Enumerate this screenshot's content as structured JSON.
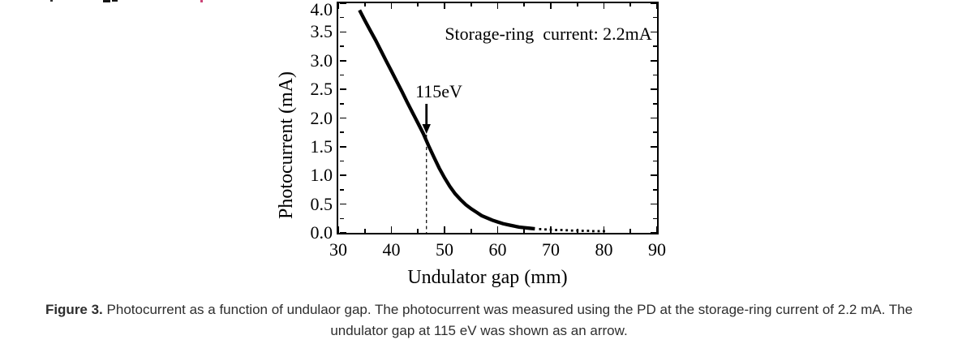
{
  "chart_data": {
    "type": "line",
    "title": "",
    "xlabel": "Undulator gap (mm)",
    "ylabel": "Photocurrent (mA)",
    "xlim": [
      30,
      90
    ],
    "ylim": [
      0.0,
      4.0
    ],
    "grid": false,
    "line_color": "#000000",
    "x_major_ticks": [
      30,
      40,
      50,
      60,
      70,
      80,
      90
    ],
    "x_tick_labels": [
      "30",
      "40",
      "50",
      "60",
      "70",
      "80",
      "90"
    ],
    "x_minor_ticks": [
      35,
      45,
      55,
      65,
      75,
      85
    ],
    "y_major_ticks": [
      0.0,
      0.5,
      1.0,
      1.5,
      2.0,
      2.5,
      3.0,
      3.5,
      4.0
    ],
    "y_tick_labels": [
      "0.0",
      "0.5",
      "1.0",
      "1.5",
      "2.0",
      "2.5",
      "3.0",
      "3.5",
      "4.0"
    ],
    "y_minor_ticks": [
      0.25,
      0.75,
      1.25,
      1.75,
      2.25,
      2.75,
      3.25,
      3.75
    ],
    "annotations": [
      {
        "text": "Storage-ring  current: 2.2mA",
        "position": "upper-right-inside"
      },
      {
        "text": "115eV",
        "type": "arrow-with-dashed-line",
        "x_mm": 46.6
      }
    ],
    "series": [
      {
        "name": "Photocurrent",
        "marker": "dense-dots",
        "points": [
          [
            34,
            3.88
          ],
          [
            35,
            3.7
          ],
          [
            36,
            3.53
          ],
          [
            37,
            3.36
          ],
          [
            38,
            3.18
          ],
          [
            39,
            3.0
          ],
          [
            40,
            2.82
          ],
          [
            41,
            2.64
          ],
          [
            42,
            2.46
          ],
          [
            43,
            2.27
          ],
          [
            44,
            2.09
          ],
          [
            45,
            1.91
          ],
          [
            46,
            1.73
          ],
          [
            47,
            1.52
          ],
          [
            48,
            1.32
          ],
          [
            49,
            1.13
          ],
          [
            50,
            0.96
          ],
          [
            51,
            0.81
          ],
          [
            52,
            0.68
          ],
          [
            53,
            0.58
          ],
          [
            54,
            0.49
          ],
          [
            55,
            0.42
          ],
          [
            56,
            0.36
          ],
          [
            57,
            0.3
          ],
          [
            58,
            0.26
          ],
          [
            59,
            0.22
          ],
          [
            60,
            0.19
          ],
          [
            61,
            0.16
          ],
          [
            62,
            0.14
          ],
          [
            63,
            0.12
          ],
          [
            64,
            0.1
          ],
          [
            65,
            0.09
          ],
          [
            66,
            0.08
          ],
          [
            67,
            0.07
          ],
          [
            68,
            0.065
          ],
          [
            69,
            0.06
          ],
          [
            70,
            0.055
          ],
          [
            71,
            0.05
          ],
          [
            72,
            0.05
          ],
          [
            73,
            0.045
          ],
          [
            74,
            0.04
          ],
          [
            75,
            0.04
          ],
          [
            76,
            0.035
          ],
          [
            77,
            0.035
          ],
          [
            78,
            0.03
          ],
          [
            79,
            0.03
          ],
          [
            80,
            0.03
          ]
        ]
      }
    ]
  },
  "caption": {
    "label": "Figure 3.",
    "line1": "Photocurrent as a function of undulaor gap. The photocurrent was measured using the PD at the storage-ring current of 2.2 mA. The",
    "line2": "undulator gap at 115 eV was shown as an arrow."
  }
}
